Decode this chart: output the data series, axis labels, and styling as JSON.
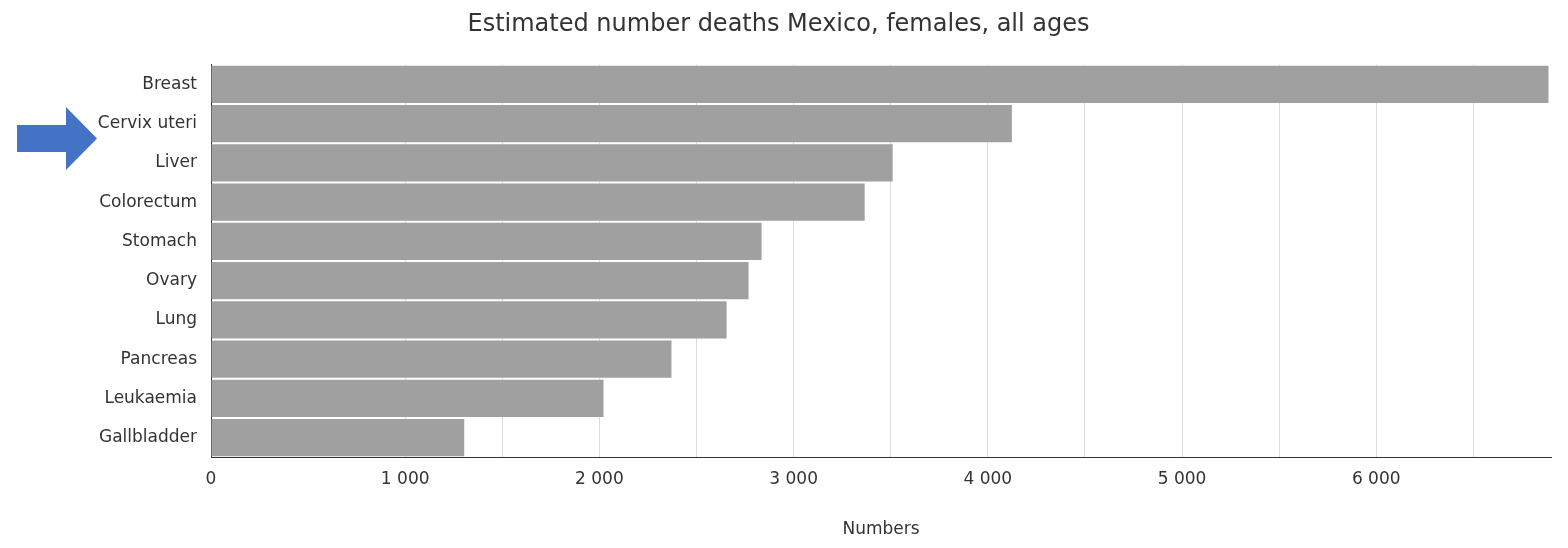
{
  "chart_data": {
    "type": "bar",
    "orientation": "horizontal",
    "title": "Estimated number deaths Mexico, females, all ages",
    "xlabel": "Numbers",
    "categories": [
      "Breast",
      "Cervix uteri",
      "Liver",
      "Colorectum",
      "Stomach",
      "Ovary",
      "Lung",
      "Pancreas",
      "Leukaemia",
      "Gallbladder"
    ],
    "values": [
      6887,
      4124,
      3510,
      3366,
      2835,
      2768,
      2655,
      2371,
      2021,
      1304
    ],
    "color": "#a0a0a0",
    "xlim": [
      0,
      6900
    ],
    "xticks": [
      0,
      {
        "value": 1000,
        "label": "1 000"
      },
      {
        "value": 1500,
        "label": null
      },
      {
        "value": 2000,
        "label": "2 000"
      },
      {
        "value": 2500,
        "label": null
      },
      {
        "value": 3000,
        "label": "3 000"
      },
      {
        "value": 3500,
        "label": null
      },
      {
        "value": 4000,
        "label": "4 000"
      },
      {
        "value": 4500,
        "label": null
      },
      {
        "value": 5000,
        "label": "5 000"
      },
      {
        "value": 5500,
        "label": null
      },
      {
        "value": 6000,
        "label": "6 000"
      },
      {
        "value": 6500,
        "label": null
      }
    ],
    "grid": "x"
  }
}
